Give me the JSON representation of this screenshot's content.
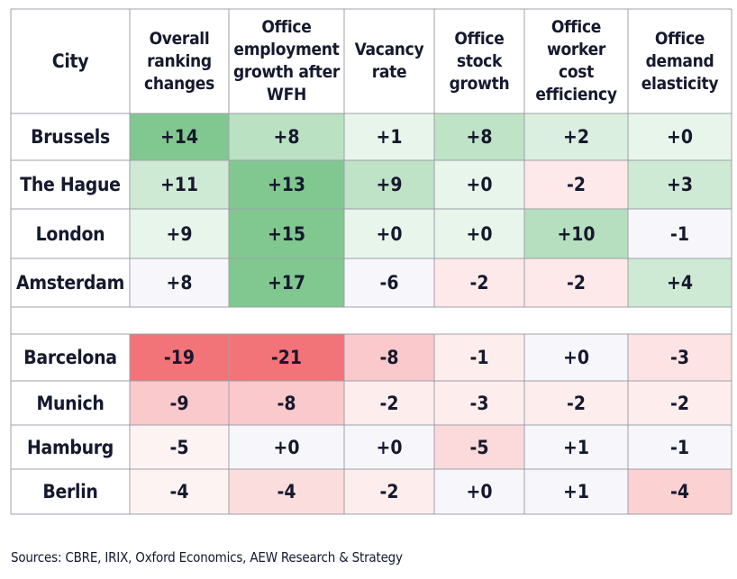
{
  "chart_data": {
    "type": "heatmap",
    "columns": [
      "City",
      "Overall ranking changes",
      "Office employment growth after WFH",
      "Vacancy rate",
      "Office stock growth",
      "Office worker cost efficiency",
      "Office demand elasticity"
    ],
    "column_lines": [
      [
        "City"
      ],
      [
        "Overall",
        "ranking",
        "changes"
      ],
      [
        "Office",
        "employment",
        "growth after",
        "WFH"
      ],
      [
        "Vacancy",
        "rate"
      ],
      [
        "Office",
        "stock",
        "growth"
      ],
      [
        "Office worker",
        "cost",
        "efficiency"
      ],
      [
        "Office",
        "demand",
        "elasticity"
      ]
    ],
    "groups": [
      {
        "rows": [
          {
            "city": "Brussels",
            "values": [
              "+14",
              "+8",
              "+1",
              "+8",
              "+2",
              "+0"
            ]
          },
          {
            "city": "The Hague",
            "values": [
              "+11",
              "+13",
              "+9",
              "+0",
              "-2",
              "+3"
            ]
          },
          {
            "city": "London",
            "values": [
              "+9",
              "+15",
              "+0",
              "+0",
              "+10",
              "-1"
            ]
          },
          {
            "city": "Amsterdam",
            "values": [
              "+8",
              "+17",
              "-6",
              "-2",
              "-2",
              "+4"
            ]
          }
        ]
      },
      {
        "rows": [
          {
            "city": "Barcelona",
            "values": [
              "-19",
              "-21",
              "-8",
              "-1",
              "+0",
              "-3"
            ]
          },
          {
            "city": "Munich",
            "values": [
              "-9",
              "-8",
              "-2",
              "-3",
              "-2",
              "-2"
            ]
          },
          {
            "city": "Hamburg",
            "values": [
              "-5",
              "+0",
              "+0",
              "-5",
              "+1",
              "-1"
            ]
          },
          {
            "city": "Berlin",
            "values": [
              "-4",
              "-4",
              "-2",
              "+0",
              "+1",
              "-4"
            ]
          }
        ]
      }
    ],
    "cell_fills": [
      [
        0.78,
        0.42,
        0.14,
        0.4,
        0.22,
        0.14
      ],
      [
        0.3,
        0.78,
        0.4,
        0.14,
        0.14,
        0.3
      ],
      [
        0.14,
        0.78,
        0.14,
        0.14,
        0.45,
        0.04
      ],
      [
        0.04,
        0.78,
        0.04,
        0.14,
        0.14,
        0.3
      ],
      [
        0.9,
        0.9,
        0.35,
        0.12,
        0.05,
        0.18
      ],
      [
        0.35,
        0.35,
        0.12,
        0.12,
        0.12,
        0.12
      ],
      [
        0.08,
        0.04,
        0.04,
        0.25,
        0.05,
        0.04
      ],
      [
        0.08,
        0.22,
        0.12,
        0.05,
        0.05,
        0.3
      ]
    ],
    "colors": {
      "positive": "#5db871",
      "negative": "#f26569",
      "neutral": "#f7f7fb",
      "border": "#9ea0a8",
      "text": "#16192e"
    },
    "source": "Sources: CBRE, IRIX, Oxford Economics, AEW Research & Strategy"
  }
}
